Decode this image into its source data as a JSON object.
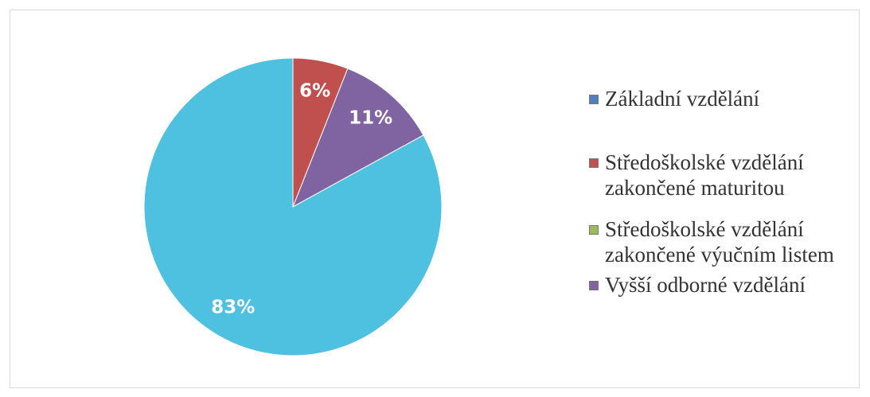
{
  "chart_data": {
    "type": "pie",
    "categories": [
      "Základní vzdělání",
      "Středoškolské vzdělání zakončené maturitou",
      "Středoškolské vzdělání zakončené výučním listem",
      "Vyšší odborné vzdělání",
      null
    ],
    "values": [
      0,
      6,
      0,
      11,
      83
    ],
    "value_labels": [
      null,
      "6%",
      null,
      "11%",
      "83%"
    ],
    "colors": [
      "#4f81bd",
      "#c0504d",
      "#9bbb59",
      "#8064a2",
      "#4fc1e0"
    ],
    "legend": "right"
  }
}
